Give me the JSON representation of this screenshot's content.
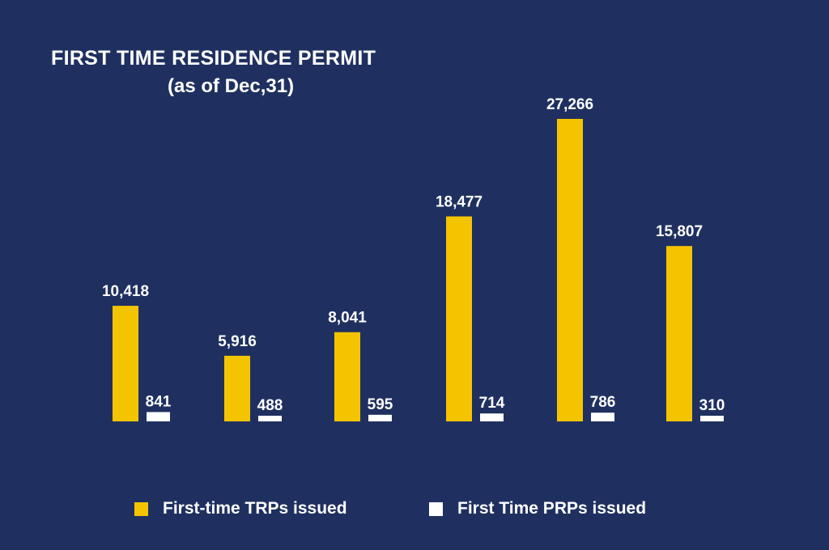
{
  "colors": {
    "background": "#1f3060",
    "trp": "#f5c400",
    "prp": "#ffffff",
    "text": "#ffffff"
  },
  "chart_data": {
    "type": "bar",
    "title": "FIRST TIME RESIDENCE PERMIT",
    "subtitle": "(as of Dec,31)",
    "xlabel": "",
    "ylabel": "",
    "categories": [
      "",
      "",
      "",
      "",
      "",
      ""
    ],
    "series": [
      {
        "name": "First-time TRPs issued",
        "values": [
          10418,
          5916,
          8041,
          18477,
          27266,
          15807
        ],
        "labels": [
          "10,418",
          "5,916",
          "8,041",
          "18,477",
          "27,266",
          "15,807"
        ],
        "color": "#f5c400"
      },
      {
        "name": "First Time PRPs issued",
        "values": [
          841,
          488,
          595,
          714,
          786,
          310
        ],
        "labels": [
          "841",
          "488",
          "595",
          "714",
          "786",
          "310"
        ],
        "color": "#ffffff"
      }
    ],
    "ylim": [
      0,
      27266
    ],
    "grid": false,
    "legend": "bottom"
  }
}
